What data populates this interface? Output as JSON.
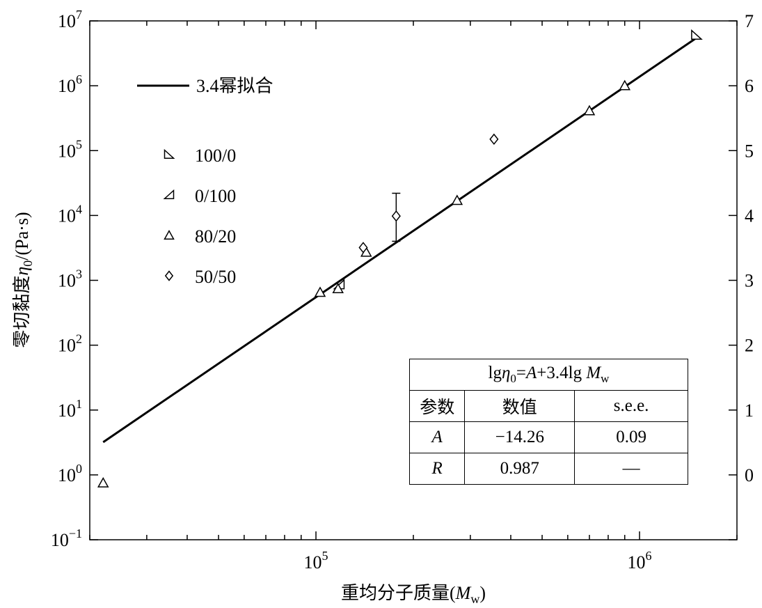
{
  "chart_data": {
    "type": "scatter",
    "title": "",
    "ylabel_prefix": "零切黏度",
    "ylabel_symbol": "η",
    "ylabel_sub": "0",
    "ylabel_unit": "/(Pa·s)",
    "xlabel_prefix": "重均分子质量(",
    "xlabel_symbol": "M",
    "xlabel_sub": "w",
    "xlabel_suffix": ")",
    "x_scale": "log",
    "y_scale": "log",
    "xlim": [
      20000,
      2000000
    ],
    "ylim": [
      0.1,
      10000000
    ],
    "x_ticks": [
      {
        "value": 100000,
        "base": "10",
        "exp": "5"
      },
      {
        "value": 1000000,
        "base": "10",
        "exp": "6"
      }
    ],
    "y_ticks": [
      {
        "value": 0.1,
        "base": "10",
        "exp": "−1"
      },
      {
        "value": 1,
        "base": "10",
        "exp": "0"
      },
      {
        "value": 10,
        "base": "10",
        "exp": "1"
      },
      {
        "value": 100,
        "base": "10",
        "exp": "2"
      },
      {
        "value": 1000,
        "base": "10",
        "exp": "3"
      },
      {
        "value": 10000,
        "base": "10",
        "exp": "4"
      },
      {
        "value": 100000,
        "base": "10",
        "exp": "5"
      },
      {
        "value": 1000000,
        "base": "10",
        "exp": "6"
      },
      {
        "value": 10000000,
        "base": "10",
        "exp": "7"
      }
    ],
    "y2_ticks": [
      "0",
      "1",
      "2",
      "3",
      "4",
      "5",
      "6",
      "7"
    ],
    "grid": false,
    "legend_position": "top-left",
    "fit_line": {
      "label": "3.4幂拟合",
      "intercept_A": -14.26,
      "slope": 3.4,
      "x_range": [
        22000,
        1500000
      ]
    },
    "series": [
      {
        "name": "100/0",
        "marker": "triangle-right",
        "points": [
          {
            "x": 1500000,
            "y": 6000000
          }
        ]
      },
      {
        "name": "0/100",
        "marker": "triangle-left",
        "points": [
          {
            "x": 118000,
            "y": 850
          }
        ]
      },
      {
        "name": "80/20",
        "marker": "triangle-up",
        "points": [
          {
            "x": 22000,
            "y": 0.75
          },
          {
            "x": 103000,
            "y": 650
          },
          {
            "x": 117000,
            "y": 740
          },
          {
            "x": 143000,
            "y": 2700
          },
          {
            "x": 273000,
            "y": 17000
          },
          {
            "x": 700000,
            "y": 410000
          },
          {
            "x": 900000,
            "y": 1000000
          }
        ]
      },
      {
        "name": "50/50",
        "marker": "diamond",
        "points": [
          {
            "x": 140000,
            "y": 3200
          },
          {
            "x": 177000,
            "y": 9800,
            "err_low": 4000,
            "err_high": 22000
          },
          {
            "x": 355000,
            "y": 150000
          }
        ]
      }
    ],
    "stats_table": {
      "formula_parts": [
        "lg",
        "η",
        "0",
        "=",
        "A",
        "+3.4lg ",
        "M",
        "w"
      ],
      "headers": [
        "参数",
        "数值",
        "s.e.e."
      ],
      "rows": [
        {
          "param": "A",
          "value": "−14.26",
          "see": "0.09"
        },
        {
          "param": "R",
          "value": "0.987",
          "see": "—"
        }
      ]
    }
  }
}
